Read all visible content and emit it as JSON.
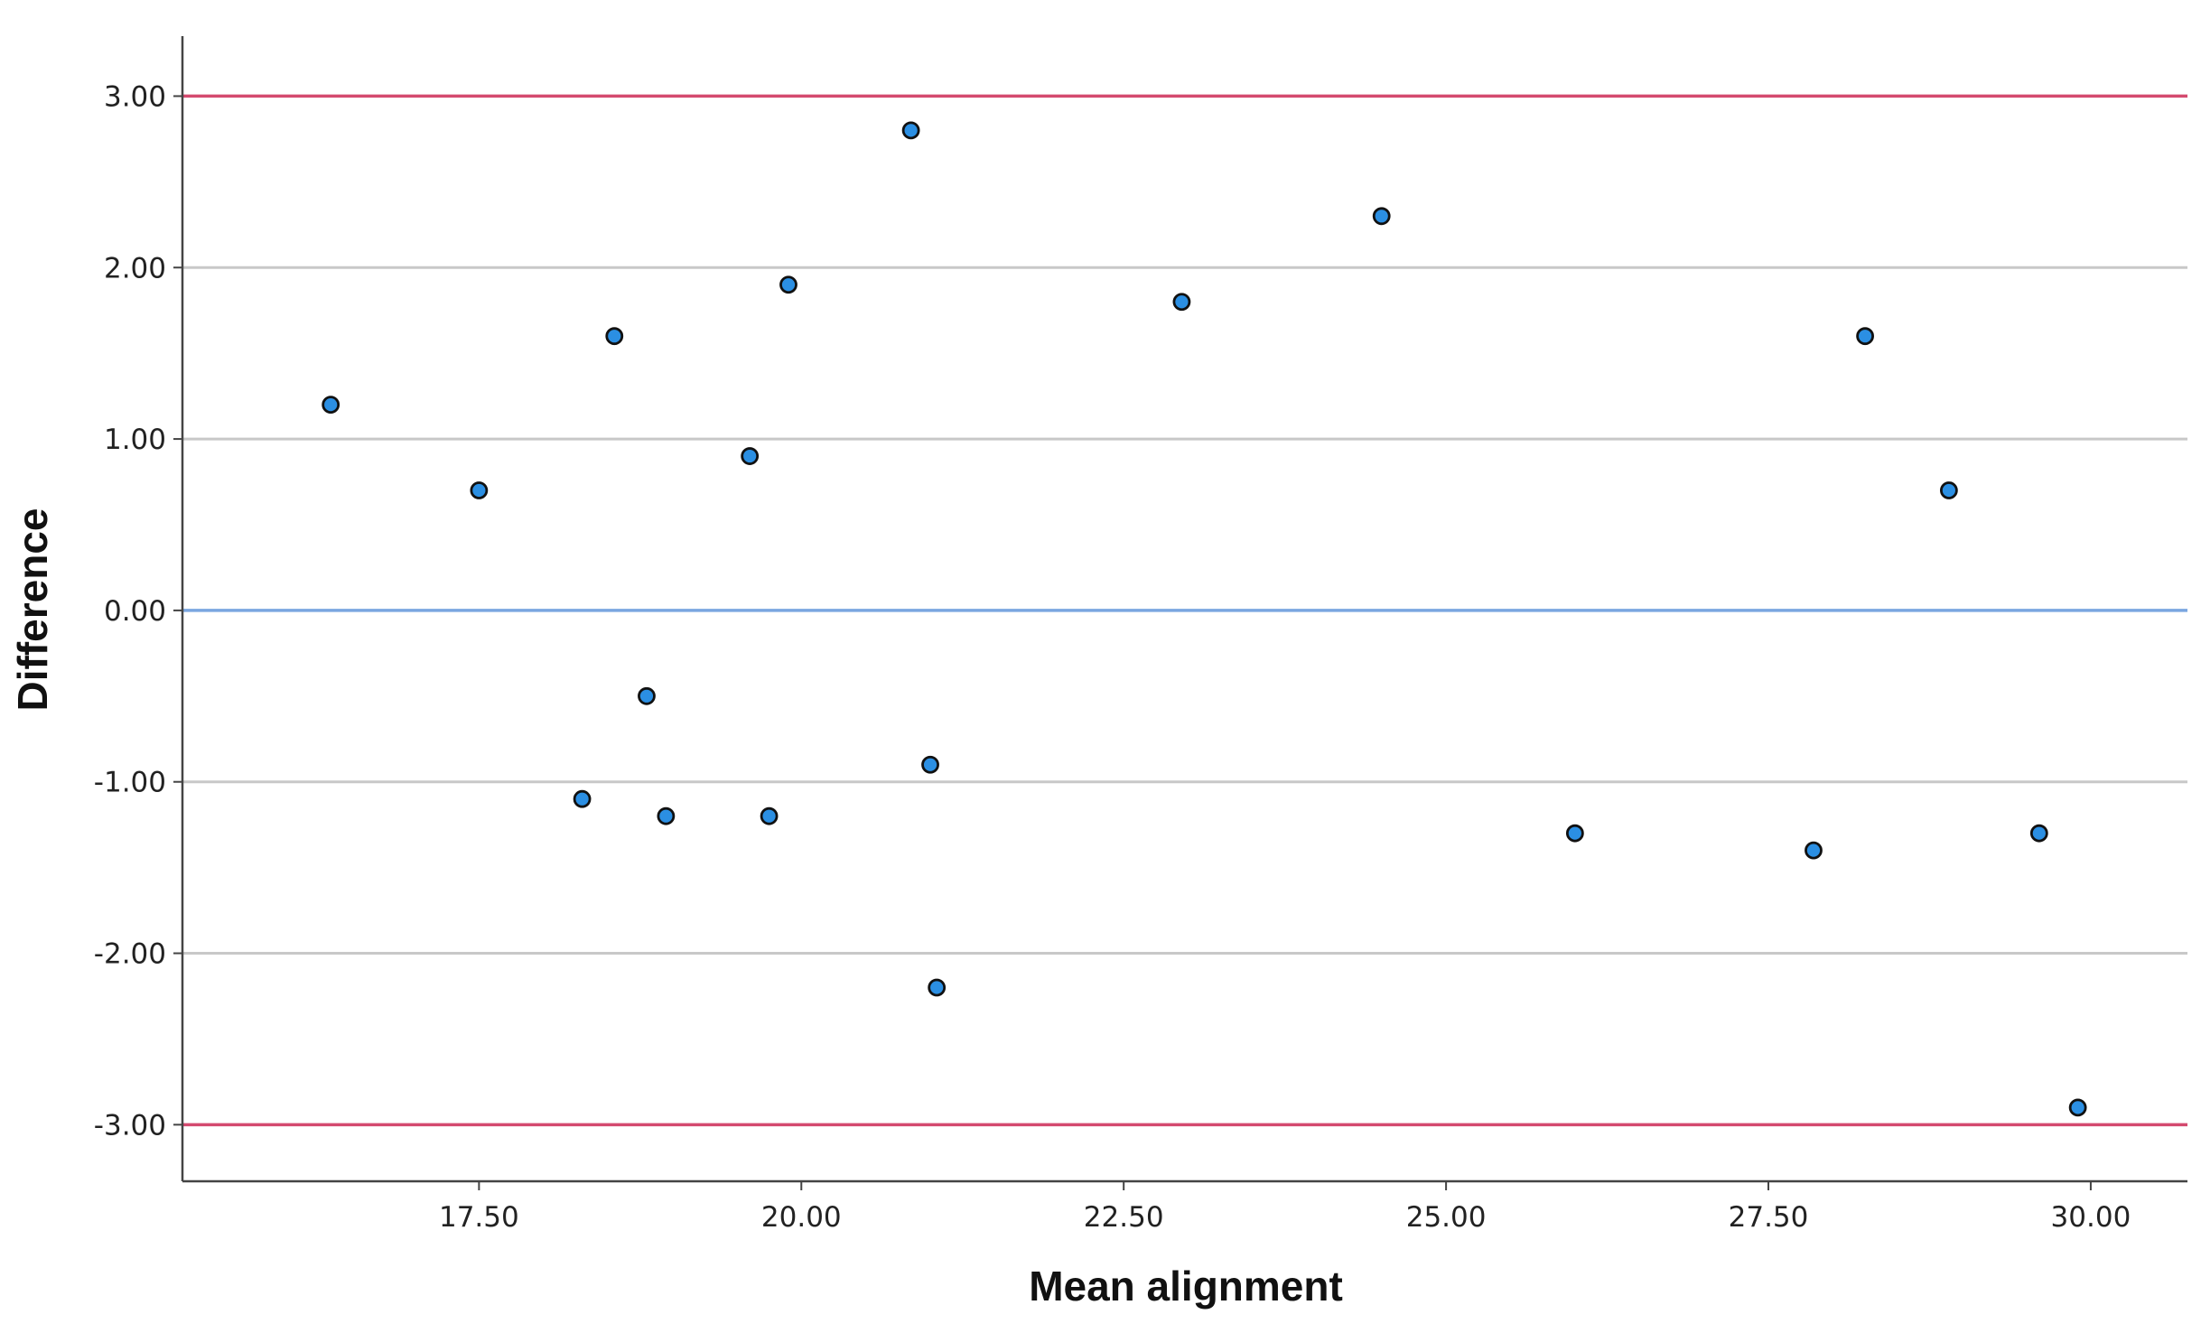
{
  "chart_data": {
    "type": "scatter",
    "title": "",
    "xlabel": "Mean alignment",
    "ylabel": "Difference",
    "xlim": [
      15.2,
      30.75
    ],
    "ylim": [
      -3.33,
      3.35
    ],
    "x_ticks": [
      17.5,
      20.0,
      22.5,
      25.0,
      27.5,
      30.0
    ],
    "x_tick_labels": [
      "17.50",
      "20.00",
      "22.50",
      "25.00",
      "27.50",
      "30.00"
    ],
    "y_ticks": [
      3.0,
      2.0,
      1.0,
      0.0,
      -1.0,
      -2.0,
      -3.0
    ],
    "y_tick_labels": [
      "3.00",
      "2.00",
      "1.00",
      "0.00",
      "-1.00",
      "-2.00",
      "-3.00"
    ],
    "grid": "horizontal",
    "reference_lines": [
      {
        "y": 3.0,
        "color": "#d44a6f"
      },
      {
        "y": 0.0,
        "color": "#7aa6e0"
      },
      {
        "y": -3.0,
        "color": "#d44a6f"
      }
    ],
    "marker_fill": "#2b8fe3",
    "marker_edge": "#111111",
    "series": [
      {
        "points": [
          {
            "x": 16.35,
            "y": 1.2
          },
          {
            "x": 17.5,
            "y": 0.7
          },
          {
            "x": 18.3,
            "y": -1.1
          },
          {
            "x": 18.55,
            "y": 1.6
          },
          {
            "x": 18.8,
            "y": -0.5
          },
          {
            "x": 18.95,
            "y": -1.2
          },
          {
            "x": 19.6,
            "y": 0.9
          },
          {
            "x": 19.75,
            "y": -1.2
          },
          {
            "x": 19.9,
            "y": 1.9
          },
          {
            "x": 20.85,
            "y": 2.8
          },
          {
            "x": 21.0,
            "y": -0.9
          },
          {
            "x": 21.05,
            "y": -2.2
          },
          {
            "x": 22.95,
            "y": 1.8
          },
          {
            "x": 24.5,
            "y": 2.3
          },
          {
            "x": 26.0,
            "y": -1.3
          },
          {
            "x": 27.85,
            "y": -1.4
          },
          {
            "x": 28.25,
            "y": 1.6
          },
          {
            "x": 28.9,
            "y": 0.7
          },
          {
            "x": 29.6,
            "y": -1.3
          },
          {
            "x": 29.9,
            "y": -2.9
          }
        ]
      }
    ]
  }
}
